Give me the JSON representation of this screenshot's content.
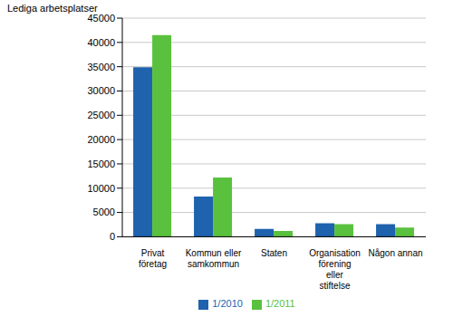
{
  "chart_data": {
    "type": "bar",
    "y_label": "Lediga arbetsplatser",
    "categories": [
      "Privat företag",
      "Kommun eller samkommun",
      "Staten",
      "Organisation förening eller stiftelse",
      "Någon annan"
    ],
    "series": [
      {
        "name": "1/2010",
        "color": "#1f62ae",
        "values": [
          34900,
          8300,
          1600,
          2800,
          2600
        ]
      },
      {
        "name": "1/2011",
        "color": "#5ac13e",
        "values": [
          41500,
          12200,
          1200,
          2600,
          1900
        ]
      }
    ],
    "ylim": [
      0,
      45000
    ],
    "yticks": [
      0,
      5000,
      10000,
      15000,
      20000,
      25000,
      30000,
      35000,
      40000,
      45000
    ],
    "grid": true,
    "legend": "bottom"
  }
}
